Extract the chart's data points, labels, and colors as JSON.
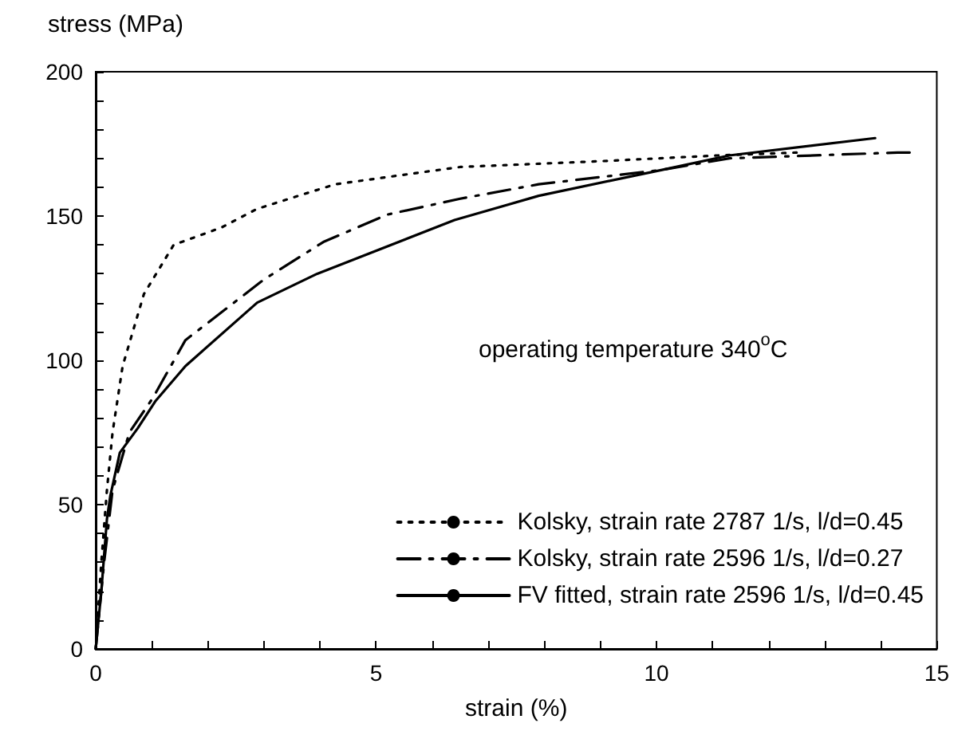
{
  "chart_data": {
    "type": "line",
    "xlabel": "strain (%)",
    "ylabel": "stress (MPa)",
    "annotations": [
      "operating temperature 340$^{o}$C"
    ],
    "xlim": [
      0,
      15
    ],
    "ylim": [
      0,
      200
    ],
    "xticks": [
      0,
      {
        "value": 1,
        "label": null
      },
      {
        "value": 2,
        "label": null
      },
      {
        "value": 3,
        "label": null
      },
      {
        "value": 4,
        "label": null
      },
      5,
      {
        "value": 6,
        "label": null
      },
      {
        "value": 7,
        "label": null
      },
      {
        "value": 8,
        "label": null
      },
      {
        "value": 9,
        "label": null
      },
      10,
      {
        "value": 11,
        "label": null
      },
      {
        "value": 12,
        "label": null
      },
      {
        "value": 13,
        "label": null
      },
      {
        "value": 14,
        "label": null
      },
      15
    ],
    "yticks": [
      0,
      {
        "value": 10,
        "label": null
      },
      {
        "value": 20,
        "label": null
      },
      {
        "value": 30,
        "label": null
      },
      {
        "value": 40,
        "label": null
      },
      50,
      {
        "value": 60,
        "label": null
      },
      {
        "value": 70,
        "label": null
      },
      {
        "value": 80,
        "label": null
      },
      {
        "value": 90,
        "label": null
      },
      100,
      {
        "value": 110,
        "label": null
      },
      {
        "value": 120,
        "label": null
      },
      {
        "value": 130,
        "label": null
      },
      {
        "value": 140,
        "label": null
      },
      150,
      {
        "value": 160,
        "label": null
      },
      {
        "value": 170,
        "label": null
      },
      {
        "value": 180,
        "label": null
      },
      {
        "value": 190,
        "label": null
      },
      200
    ],
    "grid": false,
    "legend": "bottom right",
    "marker": "none",
    "series": [
      {
        "name": "Kolsky, strain rate 2787 1/s, l/d=0.45",
        "color": "#000000",
        "line_style": "dotted",
        "x": [
          0,
          0.1,
          0.2,
          0.3,
          0.48,
          0.86,
          1.39,
          2.24,
          2.88,
          4.27,
          6.5,
          9,
          11.1,
          12.5
        ],
        "values": [
          0,
          30,
          55,
          75,
          98,
          123,
          140,
          146,
          152.5,
          161,
          167,
          169,
          171,
          172
        ]
      },
      {
        "name": "Kolsky, strain rate 2596 1/s, l/d=0.27",
        "color": "#000000",
        "line_style": "dashed",
        "x": [
          0,
          0.15,
          0.3,
          0.6,
          1.02,
          1.6,
          3,
          4.06,
          5.2,
          6.5,
          7.9,
          10.1,
          11.3,
          14.3,
          14.6
        ],
        "values": [
          0,
          30,
          55,
          75,
          87,
          107,
          128,
          141,
          150.5,
          156,
          161,
          166,
          170,
          172,
          172
        ]
      },
      {
        "name": "FV fitted, strain rate 2596 1/s, l/d=0.45",
        "color": "#000000",
        "line_style": "solid",
        "x": [
          0,
          0.1,
          0.2,
          0.26,
          0.43,
          0.75,
          1.07,
          1.6,
          2.88,
          3.95,
          6.4,
          7.9,
          10.1,
          11.3,
          13.9
        ],
        "values": [
          0,
          20,
          45,
          53,
          68,
          76.5,
          86,
          98,
          120,
          130,
          148.6,
          157,
          166,
          171,
          177
        ]
      }
    ]
  }
}
